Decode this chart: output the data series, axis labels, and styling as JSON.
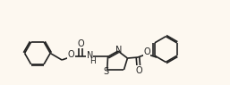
{
  "bg_color": "#fdf8f0",
  "bond_color": "#222222",
  "lw": 1.2,
  "fs": 6.5,
  "figsize": [
    2.57,
    0.95
  ],
  "dpi": 100,
  "xlim": [
    0,
    10.5
  ],
  "ylim": [
    -1.2,
    3.5
  ]
}
